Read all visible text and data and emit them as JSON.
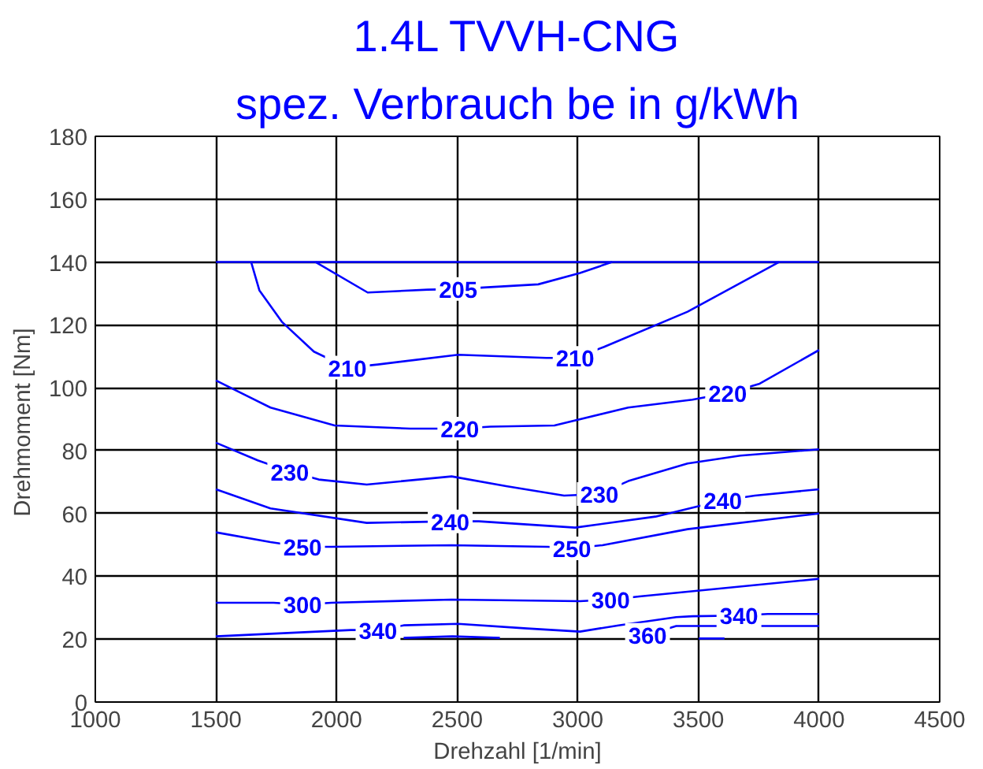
{
  "chart_data": {
    "type": "line",
    "title": "1.4L TVVH-CNG",
    "subtitle": "spez. Verbrauch be in g/kWh",
    "xlabel": "Drehzahl [1/min]",
    "ylabel": "Drehmoment  [Nm]",
    "xlim": [
      1000,
      4500
    ],
    "xticks": [
      1000,
      1500,
      2000,
      2500,
      3000,
      3500,
      4000,
      4500
    ],
    "ylim": [
      0,
      180
    ],
    "yticks": [
      0,
      20,
      40,
      60,
      80,
      100,
      120,
      140,
      160,
      180
    ],
    "grid": true,
    "marker": "none",
    "line_style": "solid",
    "series": [
      {
        "color": "#0000ff",
        "x": [
          1500,
          4000
        ],
        "values": [
          140,
          140
        ]
      },
      {
        "color": "#0000ff",
        "x": [
          1913,
          2129,
          2378,
          2504,
          2610,
          2836,
          3009,
          3142
        ],
        "values": [
          140,
          130.3,
          131.2,
          131.4,
          131.9,
          132.9,
          136.5,
          140
        ]
      },
      {
        "color": "#0000ff",
        "x": [
          1646,
          1680,
          1773,
          1906,
          2045,
          2171,
          2504,
          2870,
          2989,
          3109,
          3455,
          3834
        ],
        "values": [
          140,
          131,
          121,
          111.5,
          106.4,
          107.4,
          110.5,
          109.5,
          109.5,
          113,
          124.2,
          140
        ]
      },
      {
        "color": "#0000ff",
        "x": [
          1500,
          1726,
          1992,
          2305,
          2511,
          2637,
          2903,
          3209,
          3475,
          3621,
          3754,
          4000
        ],
        "values": [
          102.3,
          93.7,
          88,
          87,
          87,
          87.6,
          88,
          93.7,
          96.2,
          98.3,
          101.3,
          112
        ]
      },
      {
        "color": "#0000ff",
        "x": [
          1500,
          1673,
          1806,
          1926,
          2125,
          2477,
          2703,
          2943,
          3089,
          3209,
          3455,
          3674,
          4000
        ],
        "values": [
          82.5,
          76.9,
          73.3,
          70.8,
          69.2,
          71.8,
          68.7,
          65.7,
          66.2,
          70.3,
          75.9,
          78.4,
          80.4
        ]
      },
      {
        "color": "#0000ff",
        "x": [
          1500,
          1726,
          2125,
          2471,
          2590,
          2989,
          3322,
          3601,
          3734,
          4000
        ],
        "values": [
          67.7,
          61.6,
          57,
          57.5,
          57.5,
          55.5,
          59,
          64.2,
          65.7,
          67.7
        ]
      },
      {
        "color": "#0000ff",
        "x": [
          1500,
          1726,
          1859,
          1979,
          2477,
          2876,
          2976,
          3102,
          3455,
          4000
        ],
        "values": [
          54,
          50.9,
          49.4,
          49.4,
          49.9,
          49.4,
          48.9,
          49.9,
          55,
          60
        ]
      },
      {
        "color": "#0000ff",
        "x": [
          1500,
          1739,
          1859,
          1979,
          2477,
          3009,
          3136,
          3255,
          4000
        ],
        "values": [
          31.6,
          31.6,
          31,
          31.6,
          32.6,
          32.1,
          32.6,
          33.6,
          39.2
        ]
      },
      {
        "color": "#0000ff",
        "x": [
          1500,
          2059,
          2172,
          2278,
          2504,
          2790,
          3009,
          3169,
          3408,
          3475,
          3668,
          3787,
          4000
        ],
        "values": [
          20.9,
          22.9,
          22.9,
          24.4,
          24.9,
          23.4,
          22.4,
          24.4,
          27,
          27.3,
          27.5,
          28,
          28
        ]
      },
      {
        "color": "#0000ff",
        "x": [
          2278,
          2480,
          2677
        ],
        "values": [
          20.4,
          20.9,
          20.4
        ]
      },
      {
        "color": "#0000ff",
        "x": [
          3289,
          3408,
          4000
        ],
        "values": [
          21.4,
          24.2,
          24.2
        ]
      },
      {
        "color": "#0000ff",
        "x": [
          3501,
          3608
        ],
        "values": [
          20.2,
          20.2
        ]
      }
    ],
    "annotations": [
      {
        "text": "205",
        "x": 2504,
        "y": 131.4
      },
      {
        "text": "210",
        "x": 2045,
        "y": 106.4
      },
      {
        "text": "210",
        "x": 2989,
        "y": 109.5
      },
      {
        "text": "220",
        "x": 2511,
        "y": 87
      },
      {
        "text": "220",
        "x": 3621,
        "y": 98.3
      },
      {
        "text": "230",
        "x": 1806,
        "y": 73.3
      },
      {
        "text": "230",
        "x": 3089,
        "y": 66.2
      },
      {
        "text": "240",
        "x": 2471,
        "y": 57.5
      },
      {
        "text": "240",
        "x": 3601,
        "y": 64.2
      },
      {
        "text": "250",
        "x": 1859,
        "y": 49.4
      },
      {
        "text": "250",
        "x": 2976,
        "y": 48.9
      },
      {
        "text": "300",
        "x": 1859,
        "y": 31
      },
      {
        "text": "300",
        "x": 3136,
        "y": 32.6
      },
      {
        "text": "340",
        "x": 2172,
        "y": 22.9
      },
      {
        "text": "340",
        "x": 3668,
        "y": 27.5
      },
      {
        "text": "360",
        "x": 3289,
        "y": 21.4
      }
    ]
  }
}
